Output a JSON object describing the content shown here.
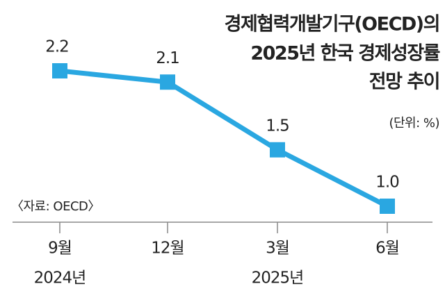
{
  "chart_data": {
    "type": "line",
    "title": [
      "경제협력개발기구(OECD)의",
      "2025년 한국 경제성장률",
      "전망 추이"
    ],
    "unit": "(단위: %)",
    "source": "〈자료: OECD〉",
    "categories": [
      "9월",
      "12월",
      "3월",
      "6월"
    ],
    "year_labels": [
      "2024년",
      null,
      "2025년",
      null
    ],
    "values": [
      2.2,
      2.1,
      1.5,
      1.0
    ],
    "value_labels": [
      "2.2",
      "2.1",
      "1.5",
      "1.0"
    ],
    "color": "#2aa7e1"
  }
}
